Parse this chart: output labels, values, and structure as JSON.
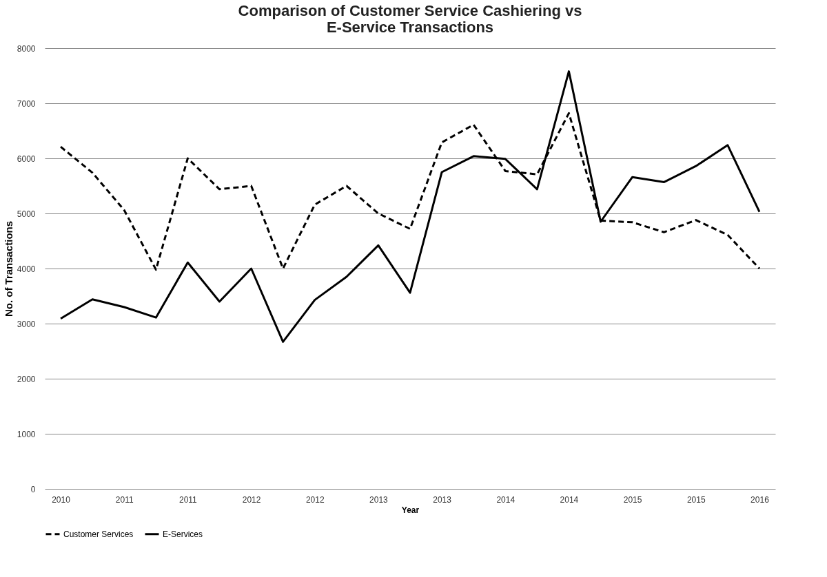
{
  "chart_data": {
    "type": "line",
    "title": "Comparison of Customer Service Cashiering vs E-Service Transactions",
    "xlabel": "Year",
    "ylabel": "No. of Transactions",
    "categories": [
      "2010",
      null,
      "2011",
      null,
      "2011",
      null,
      "2012",
      null,
      "2012",
      null,
      "2013",
      null,
      "2013",
      null,
      "2014",
      null,
      "2014",
      null,
      "2015",
      null,
      "2015",
      null,
      "2016"
    ],
    "series": [
      {
        "name": "Customer Services",
        "color": "#000000",
        "line_style": "dashed",
        "values": [
          6210,
          5740,
          5060,
          3980,
          6000,
          5440,
          5500,
          4000,
          5160,
          5500,
          5000,
          4720,
          6290,
          6610,
          5770,
          5710,
          6820,
          4870,
          4840,
          4660,
          4880,
          4610,
          4000
        ]
      },
      {
        "name": "E-Services",
        "color": "#000000",
        "line_style": "solid",
        "values": [
          3090,
          3440,
          3300,
          3110,
          4110,
          3400,
          4000,
          2670,
          3430,
          3850,
          4420,
          3560,
          5750,
          6040,
          5990,
          5440,
          7580,
          4850,
          5660,
          5570,
          5860,
          6240,
          5030
        ]
      }
    ],
    "ylim": [
      0,
      8000
    ],
    "yticks": [
      0,
      1000,
      2000,
      3000,
      4000,
      5000,
      6000,
      7000,
      8000
    ],
    "grid": "y",
    "legend": "bottom"
  }
}
